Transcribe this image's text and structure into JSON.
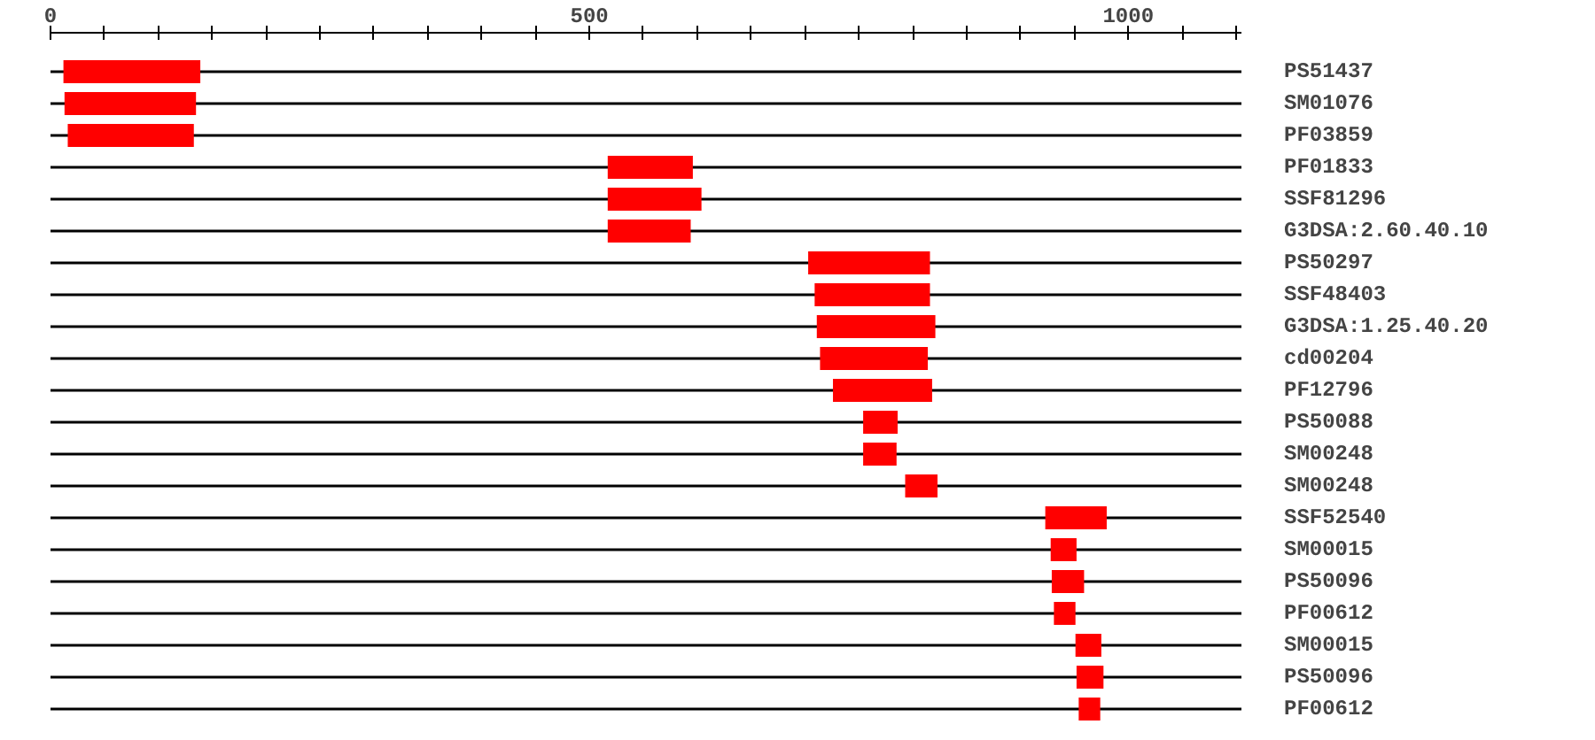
{
  "chart_data": {
    "type": "bar",
    "orientation": "horizontal",
    "color": "#ff0000",
    "categories": [
      "PS51437",
      "SM01076",
      "PF03859",
      "PF01833",
      "SSF81296",
      "G3DSA:2.60.40.10",
      "PS50297",
      "SSF48403",
      "G3DSA:1.25.40.20",
      "cd00204",
      "PF12796",
      "PS50088",
      "SM00248",
      "SM00248",
      "SSF52540",
      "SM00015",
      "PS50096",
      "PF00612",
      "SM00015",
      "PS50096",
      "PF00612"
    ],
    "base": [
      12,
      13,
      16,
      517,
      517,
      517,
      703,
      709,
      711,
      714,
      726,
      754,
      754,
      793,
      923,
      928,
      929,
      931,
      951,
      952,
      954
    ],
    "values": [
      127,
      122,
      117,
      79,
      87,
      77,
      113,
      107,
      110,
      100,
      92,
      32,
      31,
      30,
      57,
      24,
      30,
      20,
      24,
      25,
      20
    ],
    "xlim": [
      0,
      1105
    ],
    "xticks": [
      0,
      {
        "value": 50,
        "label": null
      },
      {
        "value": 100,
        "label": null
      },
      {
        "value": 150,
        "label": null
      },
      {
        "value": 200,
        "label": null
      },
      {
        "value": 250,
        "label": null
      },
      {
        "value": 300,
        "label": null
      },
      {
        "value": 350,
        "label": null
      },
      {
        "value": 400,
        "label": null
      },
      {
        "value": 450,
        "label": null
      },
      500,
      {
        "value": 550,
        "label": null
      },
      {
        "value": 600,
        "label": null
      },
      {
        "value": 650,
        "label": null
      },
      {
        "value": 700,
        "label": null
      },
      {
        "value": 750,
        "label": null
      },
      {
        "value": 800,
        "label": null
      },
      {
        "value": 850,
        "label": null
      },
      {
        "value": 900,
        "label": null
      },
      {
        "value": 950,
        "label": null
      },
      1000,
      {
        "value": 1050,
        "label": null
      },
      {
        "value": 1100,
        "label": null
      }
    ],
    "grid": "y"
  }
}
